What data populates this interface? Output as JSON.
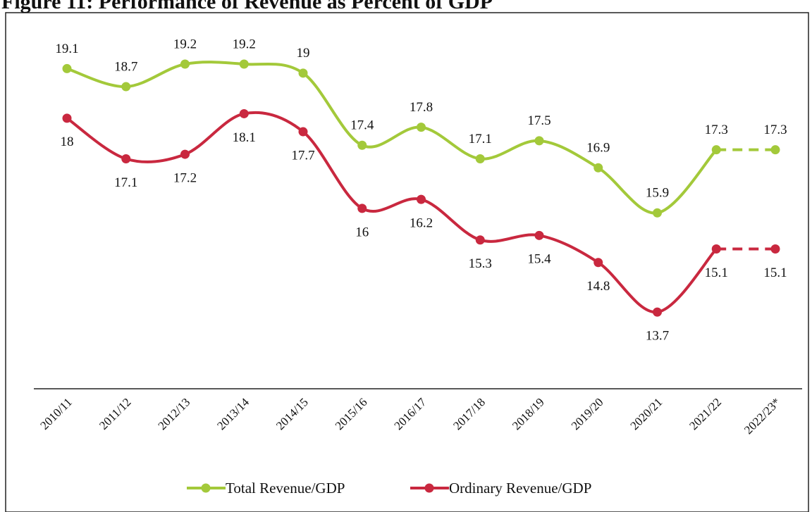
{
  "chart_data": {
    "type": "line",
    "title": "Figure 11: Performance of Revenue as Percent of GDP",
    "categories": [
      "2010/11",
      "2011/12",
      "2012/13",
      "2013/14",
      "2014/15",
      "2015/16",
      "2016/17",
      "2017/18",
      "2018/19",
      "2019/20",
      "2020/21",
      "2021/22",
      "2022/23*"
    ],
    "series": [
      {
        "name": "Total Revenue/GDP",
        "color": "#a3c93a",
        "values": [
          19.1,
          18.7,
          19.2,
          19.2,
          19.0,
          17.4,
          17.8,
          17.1,
          17.5,
          16.9,
          15.9,
          17.3,
          17.3
        ]
      },
      {
        "name": "Ordinary Revenue/GDP",
        "color": "#c9283f",
        "values": [
          18.0,
          17.1,
          17.2,
          18.1,
          17.7,
          16.0,
          16.2,
          15.3,
          15.4,
          14.8,
          13.7,
          15.1,
          15.1
        ]
      }
    ],
    "ylim": [
      12,
      20.2
    ],
    "dashed_from_index": 11,
    "legend": "bottom"
  }
}
